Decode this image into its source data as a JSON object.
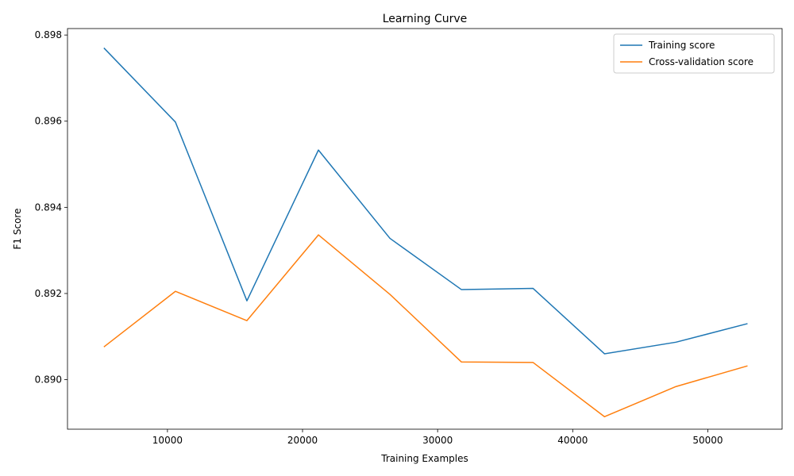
{
  "chart_data": {
    "type": "line",
    "title": "Learning Curve",
    "xlabel": "Training Examples",
    "ylabel": "F1 Score",
    "xlim": [
      2600,
      55500
    ],
    "ylim": [
      0.88885,
      0.89815
    ],
    "x": [
      5294,
      10588,
      15882,
      21176,
      26470,
      31765,
      37059,
      42353,
      47647,
      52941
    ],
    "xticks": [
      10000,
      20000,
      30000,
      40000,
      50000
    ],
    "xtick_labels": [
      "10000",
      "20000",
      "30000",
      "40000",
      "50000"
    ],
    "yticks": [
      0.89,
      0.892,
      0.894,
      0.896,
      0.898
    ],
    "ytick_labels": [
      "0.890",
      "0.892",
      "0.894",
      "0.896",
      "0.898"
    ],
    "grid": false,
    "legend_position": "top-right",
    "series": [
      {
        "name": "Training score",
        "color": "#1f77b4",
        "values": [
          0.8977,
          0.89598,
          0.89183,
          0.89533,
          0.89328,
          0.89209,
          0.89212,
          0.8906,
          0.89087,
          0.8913
        ]
      },
      {
        "name": "Cross-validation score",
        "color": "#ff7f0e",
        "values": [
          0.89076,
          0.89205,
          0.89137,
          0.89336,
          0.89198,
          0.89041,
          0.8904,
          0.88914,
          0.88984,
          0.89032
        ]
      }
    ]
  }
}
